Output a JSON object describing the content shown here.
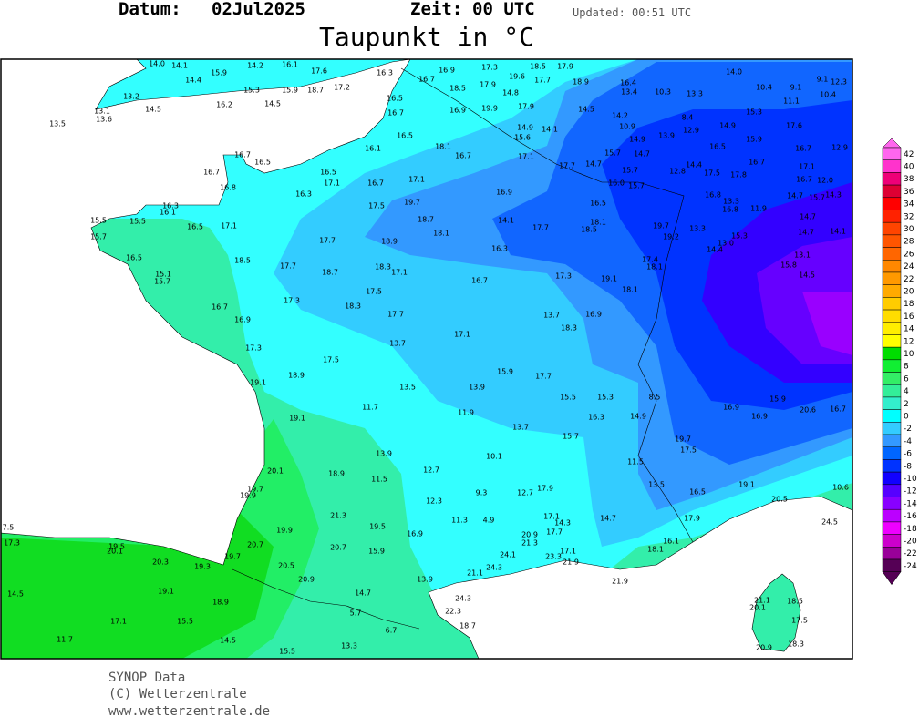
{
  "header": {
    "date_label": "Datum:",
    "date": "02Jul2025",
    "time_label": "Zeit:",
    "time": "00 UTC",
    "updated": "Updated: 00:51 UTC",
    "title": "Taupunkt in °C"
  },
  "legend": {
    "ticks": [
      42,
      40,
      38,
      36,
      34,
      32,
      30,
      28,
      26,
      24,
      22,
      20,
      18,
      16,
      14,
      12,
      10,
      8,
      6,
      4,
      2,
      0,
      -2,
      -4,
      -6,
      -8,
      -10,
      -12,
      -14,
      -16,
      -18,
      -20,
      -22,
      -24
    ],
    "colors": [
      "#ff66ee",
      "#ff33cc",
      "#ee0077",
      "#dd0033",
      "#ff0000",
      "#ff2200",
      "#ff4400",
      "#ff5500",
      "#ff6600",
      "#ff8800",
      "#ff9900",
      "#ffaa00",
      "#ffcc00",
      "#ffdd00",
      "#ffee00",
      "#ffff00",
      "#00dd00",
      "#11ee33",
      "#33ee66",
      "#33ee99",
      "#33eecc",
      "#00ffff",
      "#33ccff",
      "#3399ff",
      "#0066ff",
      "#0033ff",
      "#1100ff",
      "#5500ff",
      "#8800ff",
      "#bb00ff",
      "#ee00ff",
      "#cc00cc",
      "#990099",
      "#550055"
    ]
  },
  "stations": [
    "14.0",
    "14.1",
    "15.9",
    "14.2",
    "16.1",
    "17.6",
    "16.3",
    "16.9",
    "17.3",
    "19.6",
    "18.5",
    "17.9",
    "14.4",
    "15.3",
    "15.9",
    "18.7",
    "17.2",
    "16.7",
    "18.5",
    "17.9",
    "14.8",
    "17.7",
    "18.9",
    "16.4",
    "13.4",
    "10.3",
    "13.3",
    "14.0",
    "10.4",
    "9.1",
    "9.1",
    "12.3",
    "10.4",
    "13.2",
    "16.2",
    "14.5",
    "16.5",
    "16.9",
    "19.9",
    "17.9",
    "14.5",
    "11.1",
    "13.1",
    "14.5",
    "13.6",
    "13.5",
    "16.7",
    "14.2",
    "8.4",
    "14.9",
    "15.3",
    "14.9",
    "14.1",
    "10.9",
    "12.9",
    "17.6",
    "16.5",
    "15.6",
    "14.9",
    "13.9",
    "15.9",
    "16.1",
    "18.1",
    "16.5",
    "16.7",
    "12.9",
    "16.7",
    "16.5",
    "16.7",
    "17.1",
    "15.7",
    "14.7",
    "14.7",
    "17.7",
    "14.4",
    "16.7",
    "17.1",
    "16.7",
    "16.5",
    "15.7",
    "12.8",
    "17.5",
    "17.8",
    "17.1",
    "16.7",
    "17.1",
    "16.0",
    "15.7",
    "16.7",
    "12.0",
    "16.8",
    "16.3",
    "16.9",
    "16.8",
    "14.7",
    "15.7",
    "14.3",
    "17.5",
    "19.7",
    "16.5",
    "13.3",
    "16.8",
    "11.9",
    "16.3",
    "16.1",
    "15.5",
    "15.5",
    "16.5",
    "17.1",
    "18.7",
    "14.1",
    "17.7",
    "18.1",
    "18.5",
    "18.1",
    "19.7",
    "13.3",
    "14.7",
    "15.7",
    "17.7",
    "18.9",
    "16.3",
    "19.2",
    "15.3",
    "14.7",
    "14.1",
    "13.0",
    "14.4",
    "16.5",
    "18.5",
    "17.4",
    "13.1",
    "17.7",
    "18.7",
    "18.3",
    "17.1",
    "17.3",
    "19.1",
    "18.1",
    "15.8",
    "15.1",
    "15.7",
    "16.7",
    "14.5",
    "17.3",
    "17.5",
    "18.1",
    "16.7",
    "18.3",
    "16.9",
    "17.7",
    "13.7",
    "16.9",
    "18.3",
    "17.1",
    "13.7",
    "17.3",
    "17.5",
    "18.9",
    "15.9",
    "17.7",
    "19.1",
    "13.5",
    "13.9",
    "15.5",
    "15.3",
    "8.5",
    "15.9",
    "11.7",
    "19.1",
    "11.9",
    "16.3",
    "14.9",
    "16.9",
    "16.9",
    "20.6",
    "16.7",
    "13.7",
    "15.7",
    "19.7",
    "17.5",
    "13.9",
    "10.1",
    "12.7",
    "11.5",
    "20.1",
    "18.9",
    "11.5",
    "13.5",
    "19.1",
    "10.6",
    "19.7",
    "19.9",
    "9.3",
    "12.7",
    "17.9",
    "16.5",
    "20.5",
    "12.3",
    "21.3",
    "11.3",
    "4.9",
    "17.1",
    "14.3",
    "14.7",
    "17.9",
    "24.5",
    "19.5",
    "17.7",
    "7.5",
    "19.9",
    "16.9",
    "20.9",
    "20.7",
    "20.7",
    "21.3",
    "16.1",
    "17.3",
    "19.5",
    "20.1",
    "15.9",
    "24.1",
    "23.3",
    "17.1",
    "18.1",
    "20.3",
    "19.7",
    "20.5",
    "21.9",
    "24.3",
    "21.1",
    "19.3",
    "20.9",
    "13.9",
    "21.9",
    "14.5",
    "19.1",
    "18.9",
    "14.7",
    "24.3",
    "21.1",
    "18.5",
    "20.1",
    "22.3",
    "5.7",
    "17.1",
    "15.5",
    "6.7",
    "18.7",
    "17.5",
    "11.7",
    "14.5",
    "13.3",
    "20.9",
    "18.3",
    "15.5"
  ],
  "footer": [
    "SYNOP Data",
    "(C) Wetterzentrale",
    "www.wetterzentrale.de"
  ]
}
